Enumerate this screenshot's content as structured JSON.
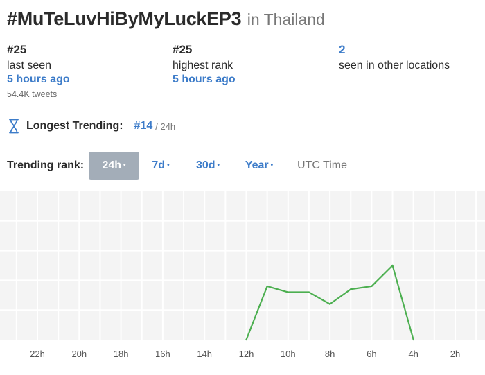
{
  "header": {
    "hashtag": "#MuTeLuvHiByMyLuckEP3",
    "location": "in Thailand"
  },
  "stats": {
    "last_seen": {
      "rank": "#25",
      "label": "last seen",
      "time": "5 hours ago",
      "tweets": "54.4K tweets"
    },
    "highest_rank": {
      "rank": "#25",
      "label": "highest rank",
      "time": "5 hours ago"
    },
    "other_locations": {
      "count": "2",
      "label": "seen in other locations"
    }
  },
  "longest_trending": {
    "label": "Longest Trending:",
    "rank": "#14",
    "suffix": "/ 24h",
    "icon": "hourglass-icon"
  },
  "trending_rank": {
    "label": "Trending rank:",
    "tabs": [
      {
        "label": "24h",
        "active": true
      },
      {
        "label": "7d",
        "active": false
      },
      {
        "label": "30d",
        "active": false
      },
      {
        "label": "Year",
        "active": false
      }
    ],
    "dot": "•",
    "timezone": "UTC Time"
  },
  "chart_data": {
    "type": "line",
    "x_ticks": [
      "22h",
      "20h",
      "18h",
      "16h",
      "14h",
      "12h",
      "10h",
      "8h",
      "6h",
      "4h",
      "2h"
    ],
    "y_range": [
      50,
      0
    ],
    "line_color": "#4caf50",
    "grid": true,
    "series": [
      {
        "x": [
          "12h",
          "11h",
          "10h",
          "9h",
          "8h",
          "7h",
          "6h",
          "5h",
          "4h"
        ],
        "y": [
          50,
          32,
          34,
          34,
          38,
          33,
          32,
          25,
          50
        ]
      }
    ]
  }
}
